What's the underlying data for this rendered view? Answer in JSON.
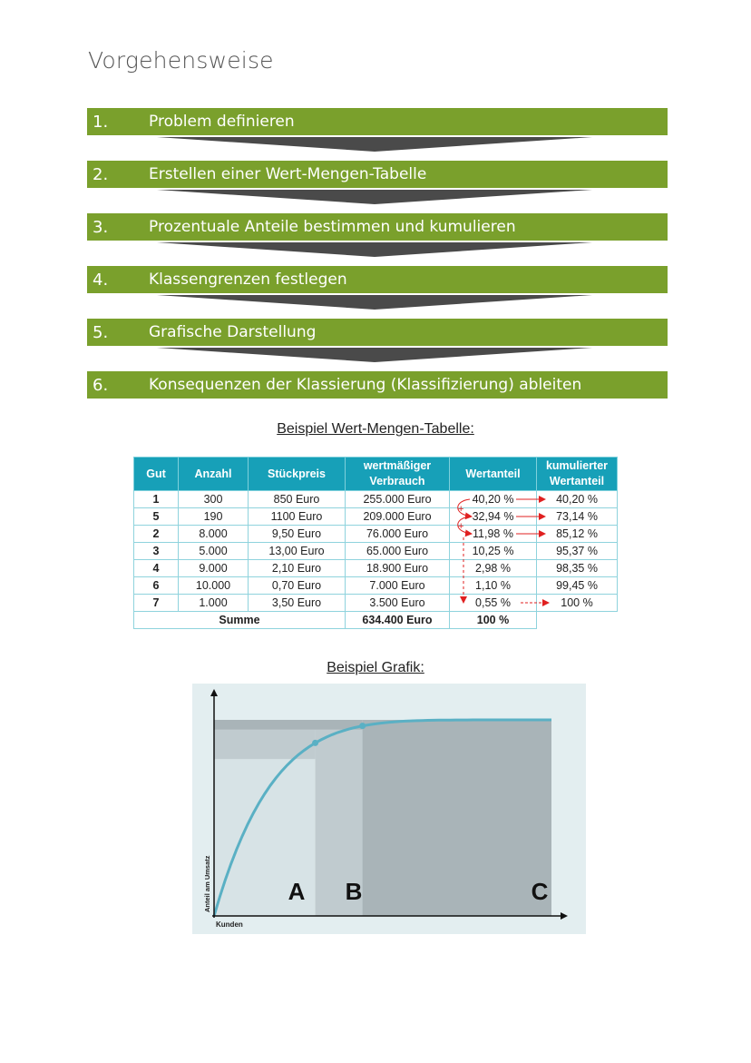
{
  "title": "Vorgehensweise",
  "steps": [
    {
      "num": "1.",
      "label": "Problem definieren"
    },
    {
      "num": "2.",
      "label": "Erstellen einer Wert-Mengen-Tabelle"
    },
    {
      "num": "3.",
      "label": "Prozentuale Anteile bestimmen und kumulieren"
    },
    {
      "num": "4.",
      "label": "Klassengrenzen festlegen"
    },
    {
      "num": "5.",
      "label": "Grafische Darstellung"
    },
    {
      "num": "6.",
      "label": "Konsequenzen der Klassierung (Klassifizierung) ableiten"
    }
  ],
  "colors": {
    "step_green": "#7aa02c",
    "arrow_gray": "#4a4a4a",
    "table_header": "#17a0b8",
    "table_border": "#8fd3dd",
    "red_arrows": "#e02020",
    "curve": "#5ab0c4"
  },
  "table_heading": "Beispiel Wert-Mengen-Tabelle:",
  "table": {
    "headers": {
      "gut": "Gut",
      "anzahl": "Anzahl",
      "stueckpreis": "Stückpreis",
      "verbrauch_1": "wertmäßiger",
      "verbrauch_2": "Verbrauch",
      "wertanteil": "Wertanteil",
      "kumuliert_1": "kumulierter",
      "kumuliert_2": "Wertanteil"
    },
    "rows": [
      {
        "gut": "1",
        "anzahl": "300",
        "preis": "850 Euro",
        "verbrauch": "255.000 Euro",
        "anteil": "40,20 %",
        "kumuliert": "40,20 %"
      },
      {
        "gut": "5",
        "anzahl": "190",
        "preis": "1100 Euro",
        "verbrauch": "209.000 Euro",
        "anteil": "32,94 %",
        "kumuliert": "73,14 %"
      },
      {
        "gut": "2",
        "anzahl": "8.000",
        "preis": "9,50 Euro",
        "verbrauch": "76.000 Euro",
        "anteil": "11,98 %",
        "kumuliert": "85,12 %"
      },
      {
        "gut": "3",
        "anzahl": "5.000",
        "preis": "13,00 Euro",
        "verbrauch": "65.000 Euro",
        "anteil": "10,25 %",
        "kumuliert": "95,37 %"
      },
      {
        "gut": "4",
        "anzahl": "9.000",
        "preis": "2,10 Euro",
        "verbrauch": "18.900 Euro",
        "anteil": "2,98 %",
        "kumuliert": "98,35 %"
      },
      {
        "gut": "6",
        "anzahl": "10.000",
        "preis": "0,70 Euro",
        "verbrauch": "7.000 Euro",
        "anteil": "1,10 %",
        "kumuliert": "99,45 %"
      },
      {
        "gut": "7",
        "anzahl": "1.000",
        "preis": "3,50 Euro",
        "verbrauch": "3.500 Euro",
        "anteil": "0,55 %",
        "kumuliert": "100 %"
      }
    ],
    "sum": {
      "label": "Summe",
      "verbrauch": "634.400 Euro",
      "anteil": "100 %"
    },
    "plus_sign": "+"
  },
  "chart_heading": "Beispiel Grafik:",
  "chart_data": {
    "type": "area",
    "title": "",
    "xlabel": "Kunden",
    "ylabel": "Anteil am Umsatz",
    "x": [
      0,
      0.3,
      0.44,
      1.0
    ],
    "y": [
      0,
      0.8,
      0.95,
      1.0
    ],
    "zones": [
      "A",
      "B",
      "C"
    ],
    "grid": false
  }
}
